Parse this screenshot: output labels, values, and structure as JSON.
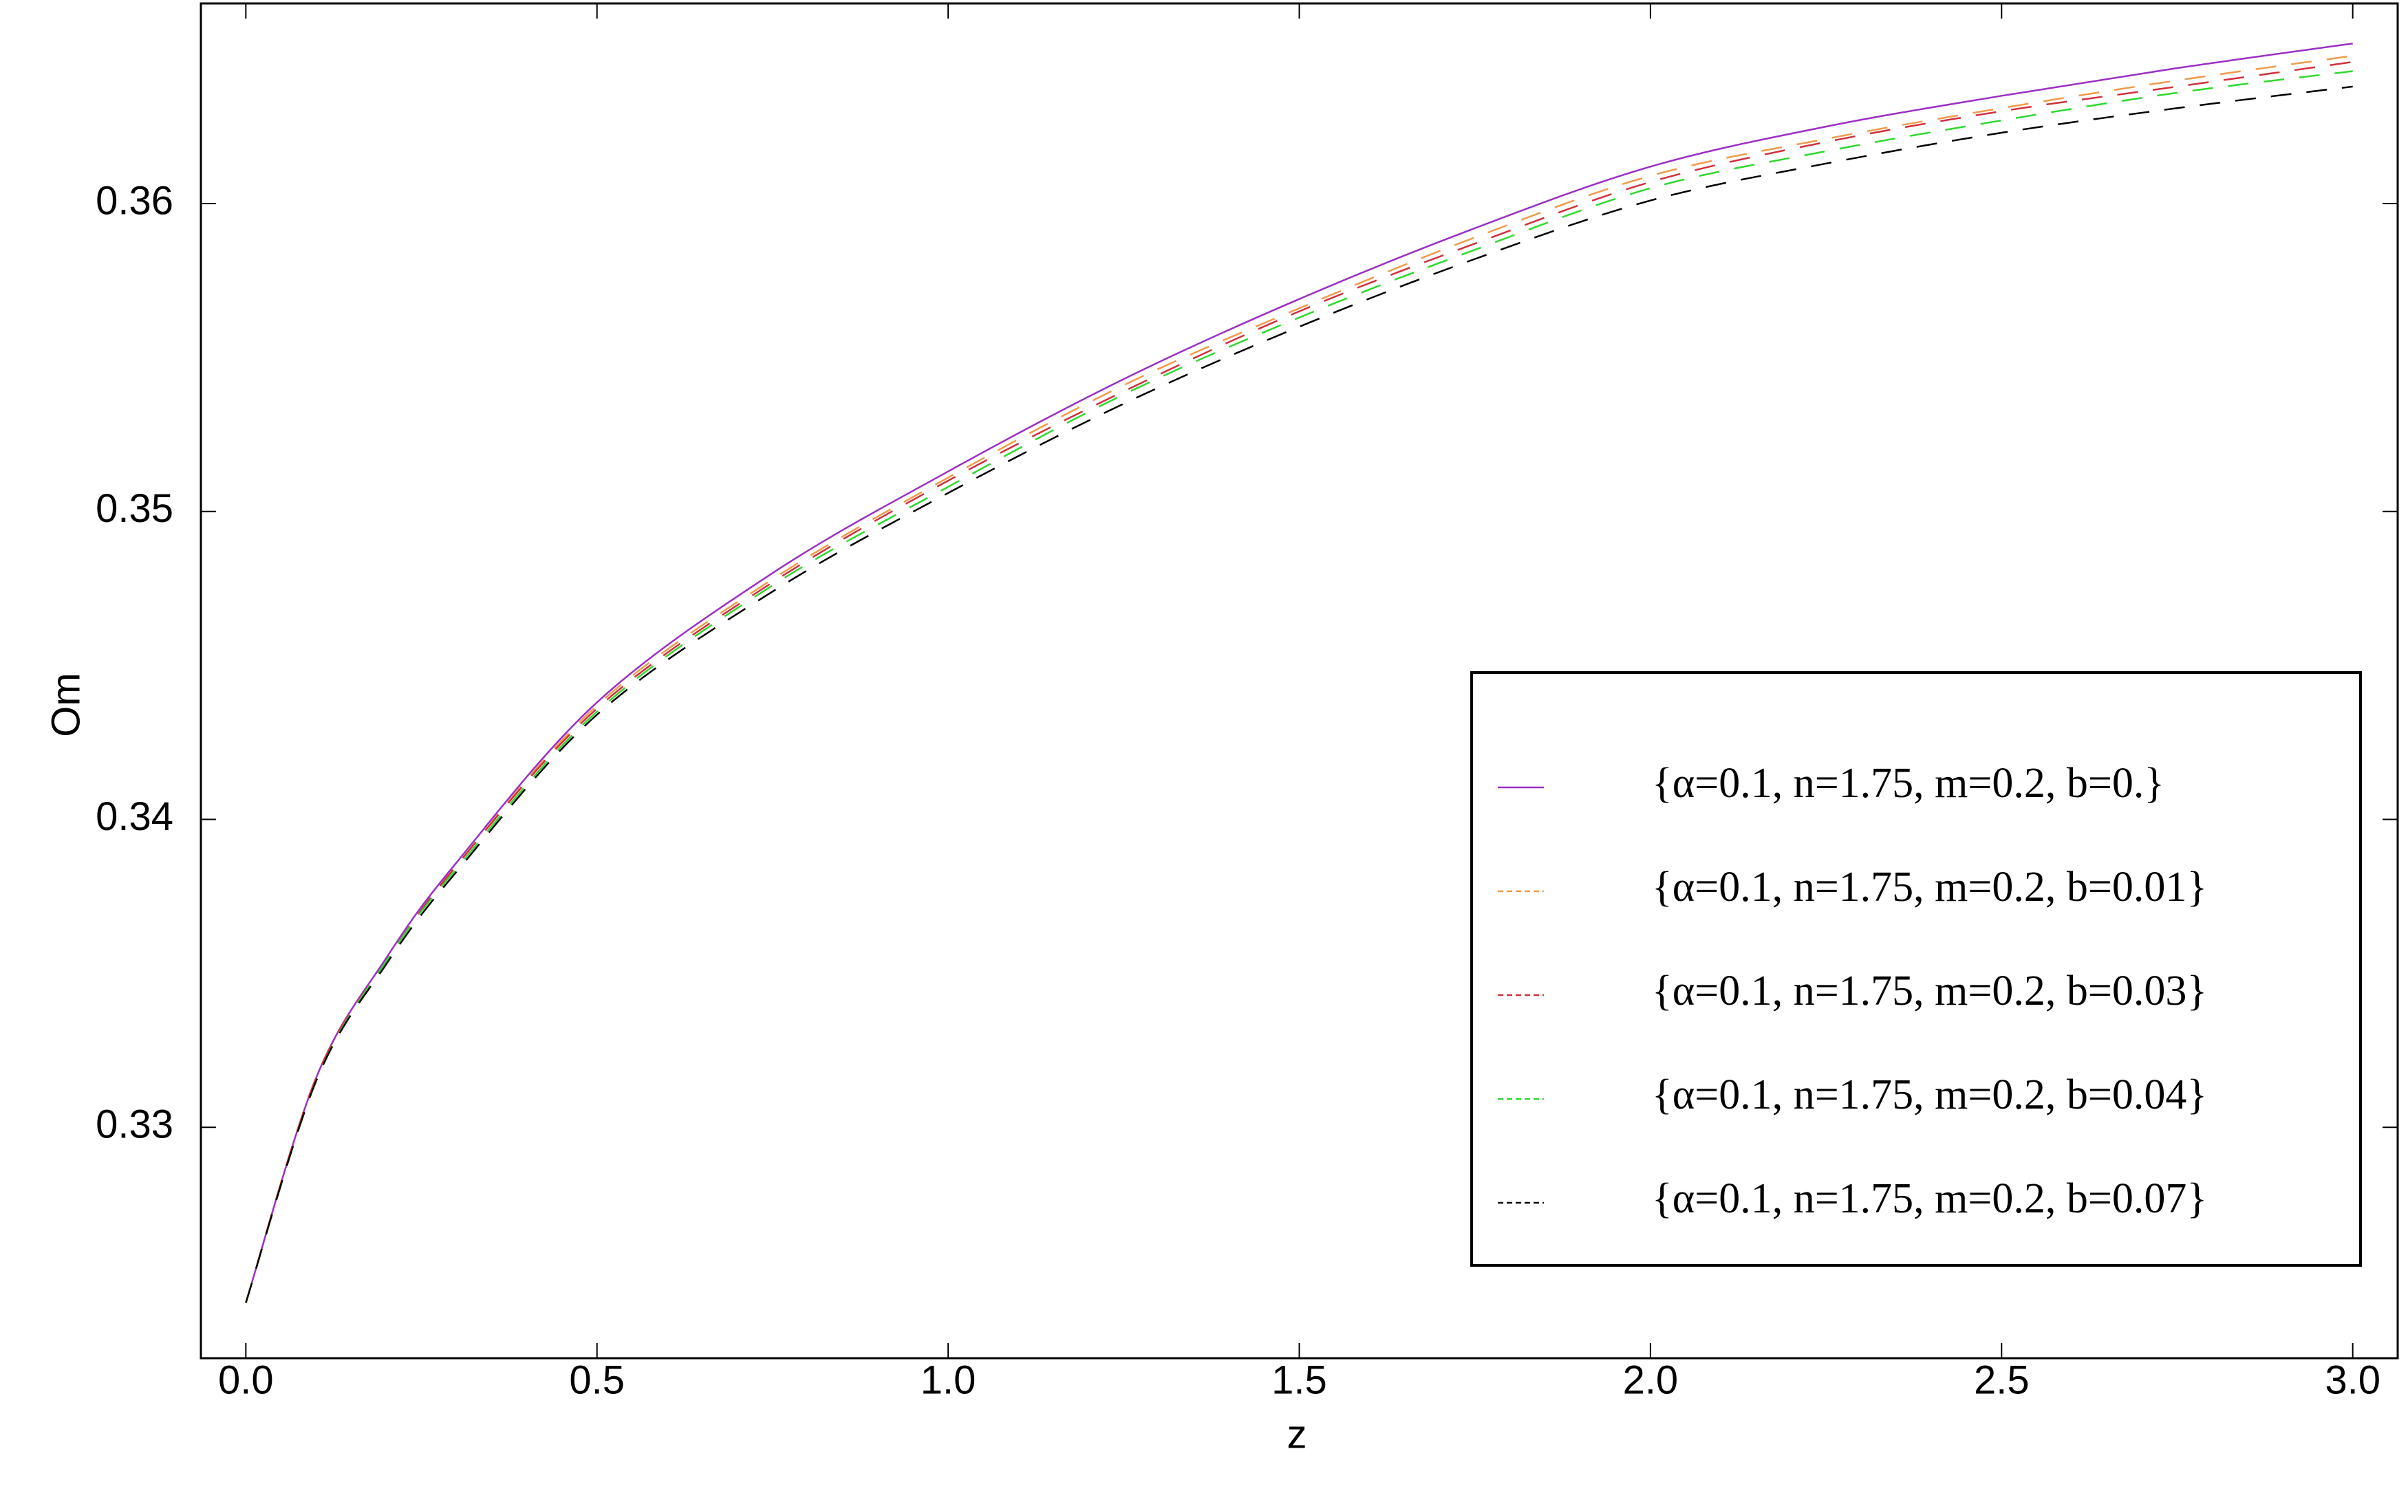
{
  "chart_data": {
    "type": "line",
    "x_label": "z",
    "y_label": "Om",
    "x": [
      0,
      0.1,
      0.2,
      0.3,
      0.5,
      0.75,
      1,
      1.25,
      1.5,
      1.75,
      2,
      2.25,
      2.5,
      2.75,
      3
    ],
    "series": [
      {
        "name": "{α=0.1, n=1.75, m=0.2, b=0.}",
        "color": "#9a2fc4",
        "dashed": false,
        "values": [
          0.3243,
          0.3316,
          0.3355,
          0.3386,
          0.3438,
          0.348,
          0.3513,
          0.3543,
          0.3569,
          0.3592,
          0.3612,
          0.3625,
          0.3635,
          0.3644,
          0.3652
        ]
      },
      {
        "name": "{α=0.1, n=1.75, m=0.2, b=0.01}",
        "color": "#f09a4a",
        "dashed": true,
        "values": [
          0.3243,
          0.3316,
          0.3354,
          0.3385,
          0.3437,
          0.3478,
          0.3511,
          0.3541,
          0.3566,
          0.3589,
          0.3609,
          0.3621,
          0.3631,
          0.364,
          0.3648
        ]
      },
      {
        "name": "{α=0.1, n=1.75, m=0.2, b=0.03}",
        "color": "#d0303c",
        "dashed": true,
        "values": [
          0.3243,
          0.3316,
          0.3354,
          0.3385,
          0.3436,
          0.3477,
          0.351,
          0.3539,
          0.3565,
          0.3587,
          0.3607,
          0.362,
          0.363,
          0.3638,
          0.3646
        ]
      },
      {
        "name": "{α=0.1, n=1.75, m=0.2, b=0.04}",
        "color": "#2fd82f",
        "dashed": true,
        "values": [
          0.3243,
          0.3315,
          0.3354,
          0.3384,
          0.3435,
          0.3476,
          0.3508,
          0.3538,
          0.3563,
          0.3585,
          0.3605,
          0.3617,
          0.3627,
          0.3636,
          0.3643
        ]
      },
      {
        "name": "{α=0.1, n=1.75, m=0.2, b=0.07}",
        "color": "#000000",
        "dashed": true,
        "values": [
          0.3243,
          0.3315,
          0.3353,
          0.3383,
          0.3434,
          0.3474,
          0.3506,
          0.3535,
          0.356,
          0.3582,
          0.3601,
          0.3613,
          0.3623,
          0.3631,
          0.3638
        ]
      }
    ],
    "xlim": [
      -0.064,
      3.064
    ],
    "ylim": [
      0.3225,
      0.3665
    ],
    "xticks": [
      {
        "value": 0,
        "label": "0.0"
      },
      0.5,
      {
        "value": 1,
        "label": "1.0"
      },
      1.5,
      {
        "value": 2,
        "label": "2.0"
      },
      2.5,
      {
        "value": 3,
        "label": "3.0"
      }
    ],
    "yticks": [
      0.33,
      0.34,
      0.35,
      0.36
    ],
    "grid": false,
    "legend": "lower-right"
  }
}
